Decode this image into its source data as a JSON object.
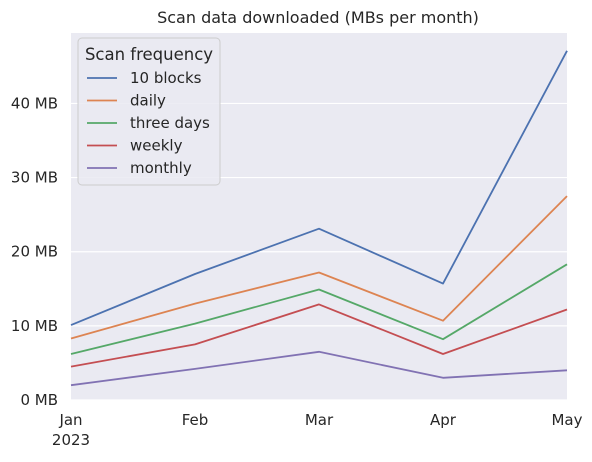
{
  "chart_data": {
    "type": "line",
    "title": "Scan data downloaded (MBs per month)",
    "xlabel": "",
    "ylabel": "",
    "categories": [
      "Jan",
      "Feb",
      "Mar",
      "Apr",
      "May"
    ],
    "x_year_label": "2023",
    "y_ticks": [
      0,
      10,
      20,
      30,
      40
    ],
    "y_tick_labels": [
      "0 MB",
      "10 MB",
      "20 MB",
      "30 MB",
      "40 MB"
    ],
    "ylim": [
      0,
      49.5
    ],
    "grid": true,
    "legend": {
      "title": "Scan frequency",
      "placement": "top-left"
    },
    "series": [
      {
        "name": "10 blocks",
        "color": "#4c72b0",
        "values": [
          10.1,
          17.0,
          23.1,
          15.7,
          47.1
        ]
      },
      {
        "name": "daily",
        "color": "#dd8452",
        "values": [
          8.3,
          13.0,
          17.2,
          10.7,
          27.5
        ]
      },
      {
        "name": "three days",
        "color": "#55a868",
        "values": [
          6.2,
          10.3,
          14.9,
          8.2,
          18.3
        ]
      },
      {
        "name": "weekly",
        "color": "#c44e52",
        "values": [
          4.5,
          7.5,
          12.9,
          6.2,
          12.2
        ]
      },
      {
        "name": "monthly",
        "color": "#8172b3",
        "values": [
          2.0,
          4.2,
          6.5,
          3.0,
          4.0
        ]
      }
    ]
  }
}
